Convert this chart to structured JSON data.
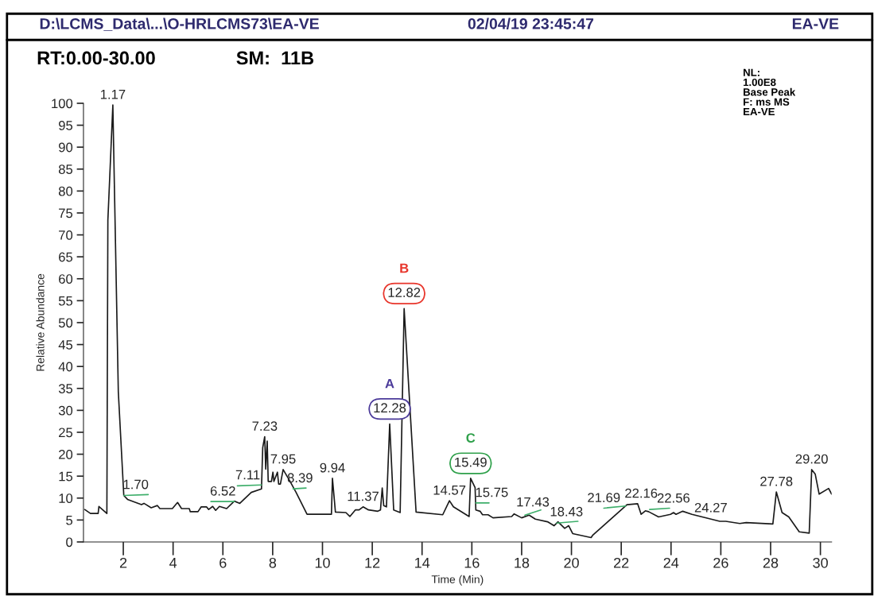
{
  "chart_data": {
    "type": "line",
    "title": "D:\\LCMS_Data\\...\\O-HRLCMS73\\EA-VE",
    "xlabel": "Time (Min)",
    "ylabel": "Relative Abundance",
    "xlim": [
      0.4,
      30.45
    ],
    "ylim": [
      0,
      100
    ],
    "xticks": [
      2,
      4,
      6,
      8,
      10,
      12,
      14,
      16,
      18,
      20,
      22,
      24,
      26,
      28,
      30
    ],
    "yticks": [
      0,
      5,
      10,
      15,
      20,
      25,
      30,
      35,
      40,
      45,
      50,
      55,
      60,
      65,
      70,
      75,
      80,
      85,
      90,
      95,
      100
    ],
    "grid": false,
    "legend": false,
    "series": [
      {
        "color": "#1a1a1a",
        "x": [
          0.45,
          0.68,
          0.99,
          1.02,
          1.34,
          1.38,
          1.58,
          1.8,
          2.02,
          2.17,
          2.73,
          2.83,
          3.12,
          3.37,
          3.47,
          3.97,
          4.18,
          4.34,
          4.65,
          4.69,
          5.0,
          5.13,
          5.34,
          5.43,
          5.59,
          5.71,
          5.86,
          6.15,
          6.46,
          6.68,
          7.14,
          7.55,
          7.6,
          7.68,
          7.72,
          7.78,
          7.82,
          7.95,
          8.01,
          8.05,
          8.19,
          8.24,
          8.31,
          8.42,
          8.7,
          8.94,
          9.38,
          10.36,
          10.4,
          10.52,
          10.94,
          11.1,
          11.32,
          11.47,
          11.63,
          11.85,
          12.22,
          12.33,
          12.4,
          12.46,
          12.57,
          12.7,
          12.86,
          13.12,
          13.28,
          13.76,
          14.83,
          15.1,
          15.26,
          15.89,
          15.95,
          16.13,
          16.16,
          16.33,
          16.43,
          16.65,
          16.85,
          17.6,
          17.7,
          18.0,
          18.3,
          18.55,
          19.04,
          19.3,
          19.46,
          19.73,
          19.89,
          20.05,
          20.79,
          20.85,
          22.23,
          22.66,
          22.8,
          22.97,
          23.1,
          23.5,
          23.98,
          24.1,
          24.2,
          24.47,
          24.84,
          25.96,
          26.2,
          26.76,
          27.02,
          28.09,
          28.23,
          28.46,
          28.73,
          29.15,
          29.55,
          29.65,
          29.79,
          29.95,
          30.33,
          30.45
        ],
        "values": [
          7.4,
          6.5,
          6.5,
          8.1,
          6.5,
          73.3,
          99.6,
          34.2,
          10.6,
          9.7,
          8.5,
          8.8,
          7.8,
          8.3,
          7.6,
          7.6,
          9.0,
          7.6,
          7.6,
          6.9,
          6.9,
          8.0,
          8.0,
          7.4,
          8.1,
          7.2,
          8.1,
          7.6,
          9.3,
          8.8,
          11.3,
          12.1,
          21.5,
          24.0,
          16.6,
          23.0,
          13.8,
          13.8,
          15.9,
          13.8,
          15.9,
          13.2,
          13.2,
          16.5,
          13.8,
          11.3,
          6.3,
          6.3,
          14.5,
          6.8,
          6.7,
          5.8,
          7.3,
          7.3,
          8.0,
          7.3,
          7.0,
          7.3,
          12.3,
          8.3,
          8.0,
          26.9,
          7.3,
          6.7,
          53.2,
          6.8,
          6.2,
          9.4,
          8.0,
          5.8,
          14.5,
          12.4,
          7.3,
          7.0,
          6.2,
          6.2,
          5.5,
          5.8,
          6.4,
          5.5,
          6.1,
          5.2,
          4.6,
          3.7,
          4.6,
          3.1,
          3.7,
          1.9,
          1.0,
          1.5,
          8.5,
          8.7,
          6.3,
          7.1,
          6.9,
          5.7,
          6.3,
          6.7,
          6.3,
          7.0,
          6.3,
          4.7,
          4.7,
          4.2,
          4.4,
          4.1,
          11.4,
          6.7,
          5.7,
          2.3,
          2.0,
          16.5,
          15.5,
          10.9,
          12.2,
          10.9
        ]
      },
      {
        "color": "#3dae6a",
        "x": [
          2.02,
          3.0
        ],
        "values": [
          10.6,
          10.8
        ]
      },
      {
        "color": "#3dae6a",
        "x": [
          5.52,
          6.46
        ],
        "values": [
          9.2,
          9.2
        ]
      },
      {
        "color": "#3dae6a",
        "x": [
          6.58,
          7.55
        ],
        "values": [
          12.8,
          13.0
        ]
      },
      {
        "color": "#3dae6a",
        "x": [
          8.82,
          9.34
        ],
        "values": [
          12.1,
          12.3
        ]
      },
      {
        "color": "#3dae6a",
        "x": [
          16.16,
          16.69
        ],
        "values": [
          8.9,
          8.9
        ]
      },
      {
        "color": "#3dae6a",
        "x": [
          18.13,
          18.77
        ],
        "values": [
          6.1,
          7.3
        ]
      },
      {
        "color": "#3dae6a",
        "x": [
          19.41,
          20.26
        ],
        "values": [
          4.3,
          4.7
        ]
      },
      {
        "color": "#3dae6a",
        "x": [
          21.3,
          22.18
        ],
        "values": [
          7.7,
          8.2
        ]
      },
      {
        "color": "#3dae6a",
        "x": [
          23.14,
          23.94
        ],
        "values": [
          7.4,
          7.7
        ]
      }
    ],
    "annotations": [
      "02/04/19 23:45:47",
      "EA-VE",
      "RT:0.00-30.00",
      "SM:  11B",
      "NL:\n1.00E8\nBase Peak\nF: ms MS\nEA-VE",
      {
        "text": "1.17",
        "x": 1.58,
        "y": 99.6
      },
      {
        "text": "1.70",
        "x": 2.5,
        "y": 10.7
      },
      {
        "text": "6.52",
        "x": 6.0,
        "y": 9.2
      },
      {
        "text": "7.11",
        "x": 7.0,
        "y": 12.9
      },
      {
        "text": "7.23",
        "x": 7.68,
        "y": 24.0
      },
      {
        "text": "7.95",
        "x": 8.42,
        "y": 16.5
      },
      {
        "text": "8.39",
        "x": 9.1,
        "y": 12.2
      },
      {
        "text": "9.94",
        "x": 10.4,
        "y": 14.5
      },
      {
        "text": "11.37",
        "x": 11.63,
        "y": 8.0
      },
      {
        "text": "A",
        "x": 12.7,
        "y": 26.9
      },
      {
        "text": "12.28",
        "x": 12.7,
        "y": 26.9
      },
      {
        "text": "B",
        "x": 13.28,
        "y": 53.2
      },
      {
        "text": "12.82",
        "x": 13.28,
        "y": 53.2
      },
      {
        "text": "14.57",
        "x": 15.1,
        "y": 9.4
      },
      {
        "text": "C",
        "x": 15.95,
        "y": 14.5
      },
      {
        "text": "15.49",
        "x": 15.95,
        "y": 14.5
      },
      {
        "text": "15.75",
        "x": 16.8,
        "y": 8.9
      },
      {
        "text": "17.43",
        "x": 18.45,
        "y": 6.7
      },
      {
        "text": "18.43",
        "x": 19.8,
        "y": 4.5
      },
      {
        "text": "21.69",
        "x": 21.3,
        "y": 7.7
      },
      {
        "text": "22.16",
        "x": 22.8,
        "y": 8.7
      },
      {
        "text": "22.56",
        "x": 24.1,
        "y": 7.6
      },
      {
        "text": "24.27",
        "x": 25.6,
        "y": 5.4
      },
      {
        "text": "27.78",
        "x": 28.23,
        "y": 11.4
      },
      {
        "text": "29.20",
        "x": 29.65,
        "y": 16.5
      }
    ]
  }
}
